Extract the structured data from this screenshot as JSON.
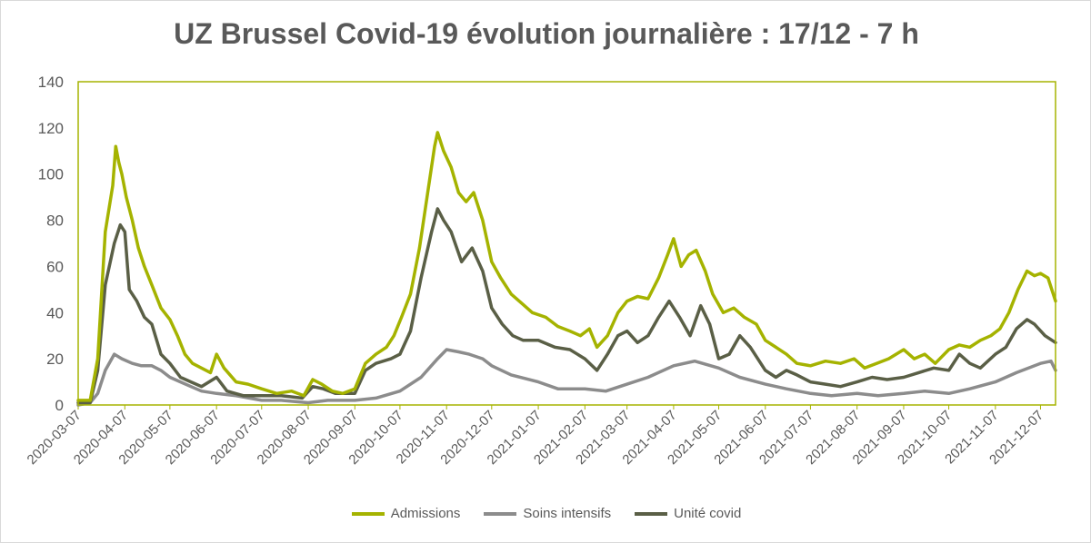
{
  "chart_data": {
    "type": "line",
    "title": "UZ Brussel Covid-19 évolution journalière : 17/12 - 7 h",
    "xlabel": "",
    "ylabel": "",
    "ylim": [
      0,
      140
    ],
    "yticks": [
      "0",
      "20",
      "40",
      "60",
      "80",
      "100",
      "120",
      "140"
    ],
    "xlim": [
      "2020-03-07",
      "2021-12-17"
    ],
    "xticks": [
      "2020-03-07",
      "2020-04-07",
      "2020-05-07",
      "2020-06-07",
      "2020-07-07",
      "2020-08-07",
      "2020-09-07",
      "2020-10-07",
      "2020-11-07",
      "2020-12-07",
      "2021-01-07",
      "2021-02-07",
      "2021-03-07",
      "2021-04-07",
      "2021-05-07",
      "2021-06-07",
      "2021-07-07",
      "2021-08-07",
      "2021-09-07",
      "2021-10-07",
      "2021-11-07",
      "2021-12-07"
    ],
    "grid": false,
    "legend_position": "bottom",
    "series": [
      {
        "name": "Admissions",
        "color": "#a5b300",
        "points": [
          [
            "2020-03-07",
            2
          ],
          [
            "2020-03-15",
            2
          ],
          [
            "2020-03-20",
            20
          ],
          [
            "2020-03-25",
            75
          ],
          [
            "2020-03-30",
            95
          ],
          [
            "2020-04-01",
            112
          ],
          [
            "2020-04-03",
            105
          ],
          [
            "2020-04-05",
            100
          ],
          [
            "2020-04-08",
            90
          ],
          [
            "2020-04-12",
            80
          ],
          [
            "2020-04-16",
            68
          ],
          [
            "2020-04-20",
            60
          ],
          [
            "2020-04-25",
            52
          ],
          [
            "2020-05-01",
            42
          ],
          [
            "2020-05-07",
            37
          ],
          [
            "2020-05-12",
            30
          ],
          [
            "2020-05-17",
            22
          ],
          [
            "2020-05-22",
            18
          ],
          [
            "2020-05-28",
            16
          ],
          [
            "2020-06-03",
            14
          ],
          [
            "2020-06-07",
            22
          ],
          [
            "2020-06-12",
            16
          ],
          [
            "2020-06-20",
            10
          ],
          [
            "2020-06-28",
            9
          ],
          [
            "2020-07-07",
            7
          ],
          [
            "2020-07-17",
            5
          ],
          [
            "2020-07-27",
            6
          ],
          [
            "2020-08-04",
            4
          ],
          [
            "2020-08-10",
            11
          ],
          [
            "2020-08-16",
            9
          ],
          [
            "2020-08-23",
            6
          ],
          [
            "2020-08-30",
            5
          ],
          [
            "2020-09-07",
            7
          ],
          [
            "2020-09-14",
            18
          ],
          [
            "2020-09-21",
            22
          ],
          [
            "2020-09-28",
            25
          ],
          [
            "2020-10-03",
            30
          ],
          [
            "2020-10-08",
            38
          ],
          [
            "2020-10-14",
            48
          ],
          [
            "2020-10-20",
            68
          ],
          [
            "2020-10-25",
            90
          ],
          [
            "2020-10-30",
            112
          ],
          [
            "2020-11-01",
            118
          ],
          [
            "2020-11-05",
            110
          ],
          [
            "2020-11-10",
            103
          ],
          [
            "2020-11-15",
            92
          ],
          [
            "2020-11-20",
            88
          ],
          [
            "2020-11-25",
            92
          ],
          [
            "2020-12-01",
            80
          ],
          [
            "2020-12-07",
            62
          ],
          [
            "2020-12-13",
            55
          ],
          [
            "2020-12-20",
            48
          ],
          [
            "2020-12-27",
            44
          ],
          [
            "2021-01-03",
            40
          ],
          [
            "2021-01-12",
            38
          ],
          [
            "2021-01-20",
            34
          ],
          [
            "2021-01-28",
            32
          ],
          [
            "2021-02-04",
            30
          ],
          [
            "2021-02-10",
            33
          ],
          [
            "2021-02-15",
            25
          ],
          [
            "2021-02-22",
            30
          ],
          [
            "2021-03-01",
            40
          ],
          [
            "2021-03-07",
            45
          ],
          [
            "2021-03-14",
            47
          ],
          [
            "2021-03-21",
            46
          ],
          [
            "2021-03-28",
            55
          ],
          [
            "2021-04-03",
            65
          ],
          [
            "2021-04-07",
            72
          ],
          [
            "2021-04-12",
            60
          ],
          [
            "2021-04-17",
            65
          ],
          [
            "2021-04-22",
            67
          ],
          [
            "2021-04-28",
            58
          ],
          [
            "2021-05-03",
            48
          ],
          [
            "2021-05-10",
            40
          ],
          [
            "2021-05-17",
            42
          ],
          [
            "2021-05-24",
            38
          ],
          [
            "2021-06-01",
            35
          ],
          [
            "2021-06-07",
            28
          ],
          [
            "2021-06-14",
            25
          ],
          [
            "2021-06-21",
            22
          ],
          [
            "2021-06-28",
            18
          ],
          [
            "2021-07-07",
            17
          ],
          [
            "2021-07-17",
            19
          ],
          [
            "2021-07-27",
            18
          ],
          [
            "2021-08-05",
            20
          ],
          [
            "2021-08-12",
            16
          ],
          [
            "2021-08-20",
            18
          ],
          [
            "2021-08-28",
            20
          ],
          [
            "2021-09-07",
            24
          ],
          [
            "2021-09-14",
            20
          ],
          [
            "2021-09-21",
            22
          ],
          [
            "2021-09-28",
            18
          ],
          [
            "2021-10-07",
            24
          ],
          [
            "2021-10-14",
            26
          ],
          [
            "2021-10-21",
            25
          ],
          [
            "2021-10-28",
            28
          ],
          [
            "2021-11-04",
            30
          ],
          [
            "2021-11-10",
            33
          ],
          [
            "2021-11-16",
            40
          ],
          [
            "2021-11-22",
            50
          ],
          [
            "2021-11-28",
            58
          ],
          [
            "2021-12-03",
            56
          ],
          [
            "2021-12-07",
            57
          ],
          [
            "2021-12-12",
            55
          ],
          [
            "2021-12-17",
            45
          ]
        ]
      },
      {
        "name": "Soins intensifs",
        "color": "#8c8c8c",
        "points": [
          [
            "2020-03-07",
            0
          ],
          [
            "2020-03-15",
            1
          ],
          [
            "2020-03-20",
            5
          ],
          [
            "2020-03-25",
            15
          ],
          [
            "2020-03-31",
            22
          ],
          [
            "2020-04-05",
            20
          ],
          [
            "2020-04-12",
            18
          ],
          [
            "2020-04-18",
            17
          ],
          [
            "2020-04-25",
            17
          ],
          [
            "2020-05-01",
            15
          ],
          [
            "2020-05-07",
            12
          ],
          [
            "2020-05-14",
            10
          ],
          [
            "2020-05-21",
            8
          ],
          [
            "2020-05-28",
            6
          ],
          [
            "2020-06-07",
            5
          ],
          [
            "2020-06-20",
            4
          ],
          [
            "2020-07-07",
            2
          ],
          [
            "2020-07-20",
            2
          ],
          [
            "2020-08-07",
            1
          ],
          [
            "2020-08-20",
            2
          ],
          [
            "2020-09-07",
            2
          ],
          [
            "2020-09-21",
            3
          ],
          [
            "2020-10-07",
            6
          ],
          [
            "2020-10-21",
            12
          ],
          [
            "2020-11-01",
            20
          ],
          [
            "2020-11-07",
            24
          ],
          [
            "2020-11-15",
            23
          ],
          [
            "2020-11-22",
            22
          ],
          [
            "2020-12-01",
            20
          ],
          [
            "2020-12-07",
            17
          ],
          [
            "2020-12-20",
            13
          ],
          [
            "2021-01-07",
            10
          ],
          [
            "2021-01-20",
            7
          ],
          [
            "2021-02-07",
            7
          ],
          [
            "2021-02-21",
            6
          ],
          [
            "2021-03-07",
            9
          ],
          [
            "2021-03-21",
            12
          ],
          [
            "2021-04-07",
            17
          ],
          [
            "2021-04-21",
            19
          ],
          [
            "2021-05-07",
            16
          ],
          [
            "2021-05-21",
            12
          ],
          [
            "2021-06-07",
            9
          ],
          [
            "2021-06-21",
            7
          ],
          [
            "2021-07-07",
            5
          ],
          [
            "2021-07-21",
            4
          ],
          [
            "2021-08-07",
            5
          ],
          [
            "2021-08-21",
            4
          ],
          [
            "2021-09-07",
            5
          ],
          [
            "2021-09-21",
            6
          ],
          [
            "2021-10-07",
            5
          ],
          [
            "2021-10-21",
            7
          ],
          [
            "2021-11-07",
            10
          ],
          [
            "2021-11-21",
            14
          ],
          [
            "2021-12-07",
            18
          ],
          [
            "2021-12-14",
            19
          ],
          [
            "2021-12-17",
            15
          ]
        ]
      },
      {
        "name": "Unité covid",
        "color": "#5a5f46",
        "points": [
          [
            "2020-03-07",
            1
          ],
          [
            "2020-03-15",
            1
          ],
          [
            "2020-03-20",
            15
          ],
          [
            "2020-03-25",
            52
          ],
          [
            "2020-03-31",
            70
          ],
          [
            "2020-04-04",
            78
          ],
          [
            "2020-04-07",
            75
          ],
          [
            "2020-04-10",
            50
          ],
          [
            "2020-04-15",
            45
          ],
          [
            "2020-04-20",
            38
          ],
          [
            "2020-04-25",
            35
          ],
          [
            "2020-05-01",
            22
          ],
          [
            "2020-05-07",
            18
          ],
          [
            "2020-05-14",
            12
          ],
          [
            "2020-05-21",
            10
          ],
          [
            "2020-05-28",
            8
          ],
          [
            "2020-06-07",
            12
          ],
          [
            "2020-06-14",
            6
          ],
          [
            "2020-06-25",
            4
          ],
          [
            "2020-07-07",
            4
          ],
          [
            "2020-07-20",
            4
          ],
          [
            "2020-08-03",
            3
          ],
          [
            "2020-08-10",
            8
          ],
          [
            "2020-08-17",
            7
          ],
          [
            "2020-08-25",
            5
          ],
          [
            "2020-09-07",
            5
          ],
          [
            "2020-09-14",
            15
          ],
          [
            "2020-09-21",
            18
          ],
          [
            "2020-10-01",
            20
          ],
          [
            "2020-10-07",
            22
          ],
          [
            "2020-10-14",
            32
          ],
          [
            "2020-10-21",
            55
          ],
          [
            "2020-10-28",
            75
          ],
          [
            "2020-11-01",
            85
          ],
          [
            "2020-11-05",
            80
          ],
          [
            "2020-11-10",
            75
          ],
          [
            "2020-11-17",
            62
          ],
          [
            "2020-11-24",
            68
          ],
          [
            "2020-12-01",
            58
          ],
          [
            "2020-12-07",
            42
          ],
          [
            "2020-12-14",
            35
          ],
          [
            "2020-12-21",
            30
          ],
          [
            "2020-12-28",
            28
          ],
          [
            "2021-01-07",
            28
          ],
          [
            "2021-01-18",
            25
          ],
          [
            "2021-01-28",
            24
          ],
          [
            "2021-02-07",
            20
          ],
          [
            "2021-02-15",
            15
          ],
          [
            "2021-02-22",
            22
          ],
          [
            "2021-03-01",
            30
          ],
          [
            "2021-03-07",
            32
          ],
          [
            "2021-03-14",
            27
          ],
          [
            "2021-03-21",
            30
          ],
          [
            "2021-03-28",
            38
          ],
          [
            "2021-04-04",
            45
          ],
          [
            "2021-04-11",
            38
          ],
          [
            "2021-04-18",
            30
          ],
          [
            "2021-04-25",
            43
          ],
          [
            "2021-05-01",
            35
          ],
          [
            "2021-05-07",
            20
          ],
          [
            "2021-05-14",
            22
          ],
          [
            "2021-05-21",
            30
          ],
          [
            "2021-05-28",
            25
          ],
          [
            "2021-06-07",
            15
          ],
          [
            "2021-06-14",
            12
          ],
          [
            "2021-06-21",
            15
          ],
          [
            "2021-06-28",
            13
          ],
          [
            "2021-07-07",
            10
          ],
          [
            "2021-07-17",
            9
          ],
          [
            "2021-07-27",
            8
          ],
          [
            "2021-08-07",
            10
          ],
          [
            "2021-08-17",
            12
          ],
          [
            "2021-08-27",
            11
          ],
          [
            "2021-09-07",
            12
          ],
          [
            "2021-09-17",
            14
          ],
          [
            "2021-09-27",
            16
          ],
          [
            "2021-10-07",
            15
          ],
          [
            "2021-10-14",
            22
          ],
          [
            "2021-10-21",
            18
          ],
          [
            "2021-10-28",
            16
          ],
          [
            "2021-11-07",
            22
          ],
          [
            "2021-11-14",
            25
          ],
          [
            "2021-11-21",
            33
          ],
          [
            "2021-11-28",
            37
          ],
          [
            "2021-12-03",
            35
          ],
          [
            "2021-12-10",
            30
          ],
          [
            "2021-12-17",
            27
          ]
        ]
      }
    ]
  }
}
